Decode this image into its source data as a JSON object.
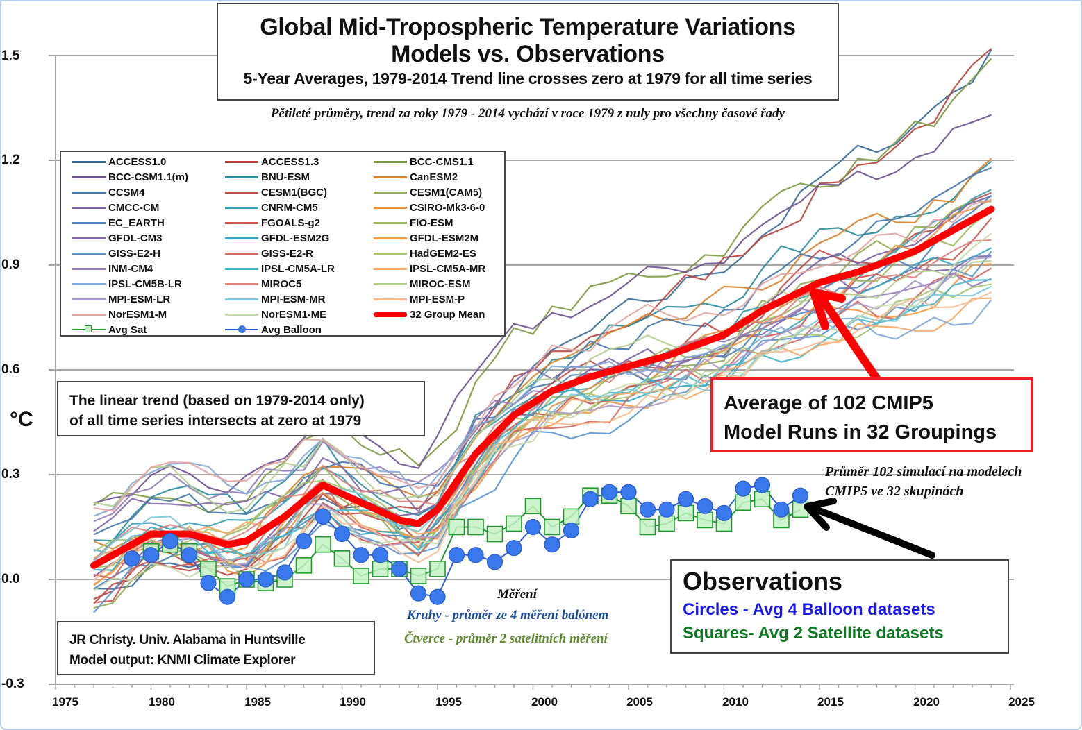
{
  "chart_data": {
    "type": "line",
    "title": "Global Mid-Tropospheric Temperature Variations",
    "subtitle": "Models vs. Observations",
    "subtitle2": "5-Year Averages, 1979-2014 Trend line crosses zero at 1979 for all time series",
    "czech_subtitle": "Pětileté průměry, trend za roky 1979 - 2014 vychází v roce 1979 z nuly pro všechny časové řady",
    "xlabel": "",
    "ylabel": "°C",
    "xlim": [
      1975,
      2025
    ],
    "ylim": [
      -0.3,
      1.5
    ],
    "x_ticks": [
      "1975",
      "1980",
      "1985",
      "1990",
      "1995",
      "2000",
      "2005",
      "2010",
      "2015",
      "2020",
      "2025"
    ],
    "y_ticks": [
      "1.5",
      "1.2",
      "0.9",
      "0.6",
      "0.3",
      "0.0",
      "-0.3"
    ],
    "grid": true,
    "legend_position": "top-left",
    "legend": [
      {
        "name": "ACCESS1.0",
        "color": "#3b6b96"
      },
      {
        "name": "ACCESS1.3",
        "color": "#b8453f"
      },
      {
        "name": "BCC-CMS1.1",
        "color": "#7f9a46"
      },
      {
        "name": "BCC-CSM1.1(m)",
        "color": "#6d5390"
      },
      {
        "name": "BNU-ESM",
        "color": "#2d8c9c"
      },
      {
        "name": "CanESM2",
        "color": "#d9822f"
      },
      {
        "name": "CCSM4",
        "color": "#4678a8"
      },
      {
        "name": "CESM1(BGC)",
        "color": "#bf4d48"
      },
      {
        "name": "CESM1(CAM5)",
        "color": "#93ad5a"
      },
      {
        "name": "CMCC-CM",
        "color": "#7a62a0"
      },
      {
        "name": "CNRM-CM5",
        "color": "#3aa0b2"
      },
      {
        "name": "CSIRO-Mk3-6-0",
        "color": "#e89240"
      },
      {
        "name": "EC_EARTH",
        "color": "#4d84bf"
      },
      {
        "name": "FGOALS-g2",
        "color": "#cd5550"
      },
      {
        "name": "FIO-ESM",
        "color": "#9cbb62"
      },
      {
        "name": "GFDL-CM3",
        "color": "#8169a8"
      },
      {
        "name": "GFDL-ESM2G",
        "color": "#34a9bd"
      },
      {
        "name": "GFDL-ESM2M",
        "color": "#f59b45"
      },
      {
        "name": "GISS-E2-H",
        "color": "#5a93cf"
      },
      {
        "name": "GISS-E2-R",
        "color": "#d46762"
      },
      {
        "name": "HadGEM2-ES",
        "color": "#a8c473"
      },
      {
        "name": "INM-CM4",
        "color": "#9580b8"
      },
      {
        "name": "IPSL-CM5A-LR",
        "color": "#48b8cc"
      },
      {
        "name": "IPSL-CM5A-MR",
        "color": "#f7a865"
      },
      {
        "name": "IPSL-CM5B-LR",
        "color": "#85a8d6"
      },
      {
        "name": "MIROC5",
        "color": "#d98480"
      },
      {
        "name": "MIROC-ESM",
        "color": "#b6cd92"
      },
      {
        "name": "MPI-ESM-LR",
        "color": "#ab9dcb"
      },
      {
        "name": "MPI-ESM-MR",
        "color": "#7fc8d8"
      },
      {
        "name": "MPI-ESM-P",
        "color": "#f6bb92"
      },
      {
        "name": "NorESM1-M",
        "color": "#e2a6a3"
      },
      {
        "name": "NorESM1-ME",
        "color": "#c9d9ae"
      },
      {
        "name": "32 Group Mean",
        "color": "#ff0000"
      },
      {
        "name": "Avg Sat",
        "color": "#1e9a2e"
      },
      {
        "name": "Avg Balloon",
        "color": "#2f5fd8"
      }
    ],
    "series": [
      {
        "name": "32 Group Mean",
        "color": "#ff0000",
        "x": [
          1977,
          1979,
          1980,
          1982,
          1984,
          1985,
          1987,
          1989,
          1991,
          1993,
          1994,
          1995,
          1997,
          1999,
          2001,
          2003,
          2005,
          2007,
          2010,
          2012,
          2015,
          2017,
          2020,
          2024
        ],
        "values": [
          0.04,
          0.1,
          0.13,
          0.13,
          0.1,
          0.11,
          0.18,
          0.27,
          0.22,
          0.17,
          0.16,
          0.2,
          0.36,
          0.47,
          0.54,
          0.58,
          0.61,
          0.64,
          0.7,
          0.77,
          0.85,
          0.88,
          0.94,
          1.06
        ]
      },
      {
        "name": "Avg Balloon",
        "color": "#2f6ee8",
        "marker": "circle",
        "x": [
          1979,
          1980,
          1981,
          1982,
          1983,
          1984,
          1985,
          1986,
          1987,
          1988,
          1989,
          1990,
          1991,
          1992,
          1993,
          1994,
          1995,
          1996,
          1997,
          1998,
          1999,
          2000,
          2001,
          2002,
          2003,
          2004,
          2005,
          2006,
          2007,
          2008,
          2009,
          2010,
          2011,
          2012,
          2013,
          2014
        ],
        "values": [
          0.06,
          0.07,
          0.11,
          0.07,
          -0.01,
          -0.05,
          0.0,
          0.0,
          0.02,
          0.11,
          0.18,
          0.13,
          0.07,
          0.07,
          0.03,
          -0.04,
          -0.05,
          0.07,
          0.07,
          0.05,
          0.09,
          0.15,
          0.1,
          0.14,
          0.23,
          0.25,
          0.25,
          0.2,
          0.2,
          0.23,
          0.21,
          0.19,
          0.26,
          0.27,
          0.2,
          0.24
        ]
      },
      {
        "name": "Avg Sat",
        "color": "#1e9a2e",
        "marker": "square",
        "x": [
          1980,
          1981,
          1982,
          1983,
          1984,
          1985,
          1986,
          1987,
          1988,
          1989,
          1990,
          1991,
          1992,
          1993,
          1994,
          1995,
          1996,
          1997,
          1998,
          1999,
          2000,
          2001,
          2002,
          2003,
          2004,
          2005,
          2006,
          2007,
          2008,
          2009,
          2010,
          2011,
          2012,
          2013,
          2014
        ],
        "values": [
          0.08,
          0.1,
          0.08,
          0.03,
          -0.02,
          0.0,
          -0.01,
          0.0,
          0.04,
          0.1,
          0.06,
          0.01,
          0.03,
          0.03,
          0.01,
          0.03,
          0.15,
          0.15,
          0.13,
          0.16,
          0.21,
          0.15,
          0.18,
          0.24,
          0.24,
          0.21,
          0.15,
          0.16,
          0.19,
          0.17,
          0.16,
          0.22,
          0.23,
          0.17,
          0.2
        ]
      }
    ],
    "model_end_values_2024": [
      1.5,
      1.48,
      1.43,
      1.36,
      1.2,
      1.17,
      1.15,
      1.14,
      1.12,
      1.1,
      1.08,
      1.06,
      1.04,
      1.02,
      1.0,
      0.98,
      0.96,
      0.93,
      0.92,
      0.9,
      0.88,
      0.86,
      0.84,
      0.82,
      0.8,
      0.98,
      0.94,
      0.91,
      0.89,
      0.87,
      1.11,
      0.95
    ],
    "model_range_start_1977": [
      -0.06,
      0.21
    ]
  },
  "annotations": {
    "trend_note": [
      "The linear trend (based on 1979-2014 only)",
      "of all time series intersects at zero at 1979"
    ],
    "credit": [
      "JR Christy. Univ. Alabama in Huntsville",
      "Model output: KNMI Climate Explorer"
    ],
    "average_box": [
      "Average of 102 CMIP5",
      "Model Runs in 32 Groupings"
    ],
    "average_czech": [
      "Průměr 102 simulací na modelech",
      "CMIP5 ve 32 skupinách"
    ],
    "observations_box": {
      "heading": "Observations",
      "circles": "Circles - Avg 4 Balloon datasets",
      "squares": "Squares- Avg 2 Satellite datasets"
    },
    "observations_czech": {
      "heading": "Měření",
      "circles": "Kruhy - průměr ze 4 měření balónem",
      "squares": "Čtverce - průměr 2 satelitních měření"
    }
  }
}
